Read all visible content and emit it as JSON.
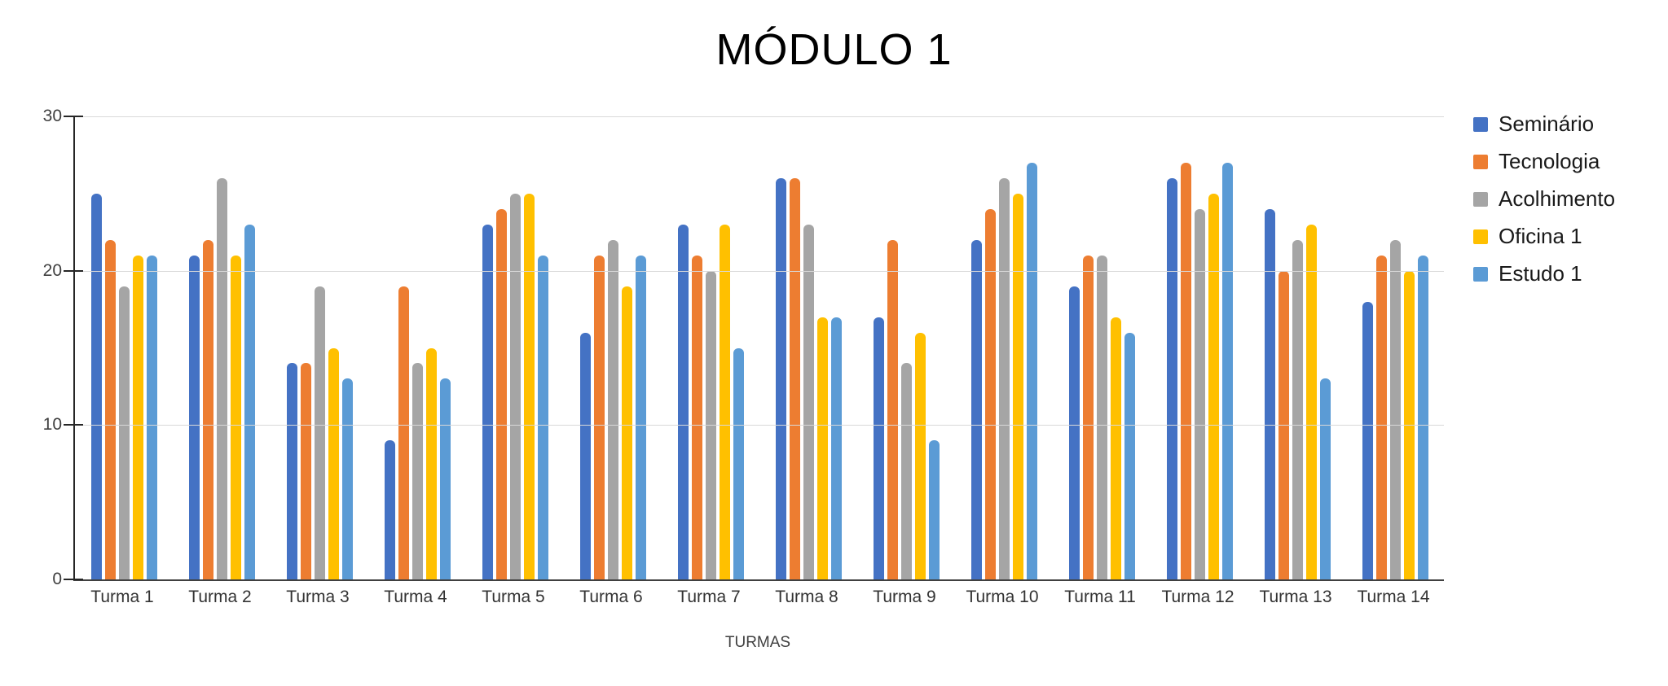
{
  "title": "MÓDULO 1",
  "chart_data": {
    "type": "bar",
    "title": "MÓDULO 1",
    "xlabel": "TURMAS",
    "ylabel": "",
    "ylim": [
      0,
      30
    ],
    "yticks": [
      30,
      20,
      10,
      0
    ],
    "grid": "horizontal",
    "legend_position": "right",
    "categories": [
      "Turma 1",
      "Turma 2",
      "Turma 3",
      "Turma 4",
      "Turma 5",
      "Turma 6",
      "Turma 7",
      "Turma 8",
      "Turma 9",
      "Turma 10",
      "Turma 11",
      "Turma 12",
      "Turma 13",
      "Turma 14"
    ],
    "series": [
      {
        "name": "Seminário",
        "color": "#4472C4",
        "values": [
          25,
          21,
          14,
          9,
          23,
          16,
          23,
          26,
          17,
          22,
          19,
          26,
          24,
          18
        ]
      },
      {
        "name": "Tecnologia",
        "color": "#ED7D31",
        "values": [
          22,
          22,
          14,
          19,
          24,
          21,
          21,
          26,
          22,
          24,
          21,
          27,
          20,
          21
        ]
      },
      {
        "name": "Acolhimento",
        "color": "#A5A5A5",
        "values": [
          19,
          26,
          19,
          14,
          25,
          22,
          20,
          23,
          14,
          26,
          21,
          24,
          22,
          22
        ]
      },
      {
        "name": "Oficina 1",
        "color": "#FFC000",
        "values": [
          21,
          21,
          15,
          15,
          25,
          19,
          23,
          17,
          16,
          25,
          17,
          25,
          23,
          20
        ]
      },
      {
        "name": "Estudo 1",
        "color": "#5B9BD5",
        "values": [
          21,
          23,
          13,
          13,
          21,
          21,
          15,
          17,
          9,
          27,
          16,
          27,
          13,
          21
        ]
      }
    ]
  }
}
